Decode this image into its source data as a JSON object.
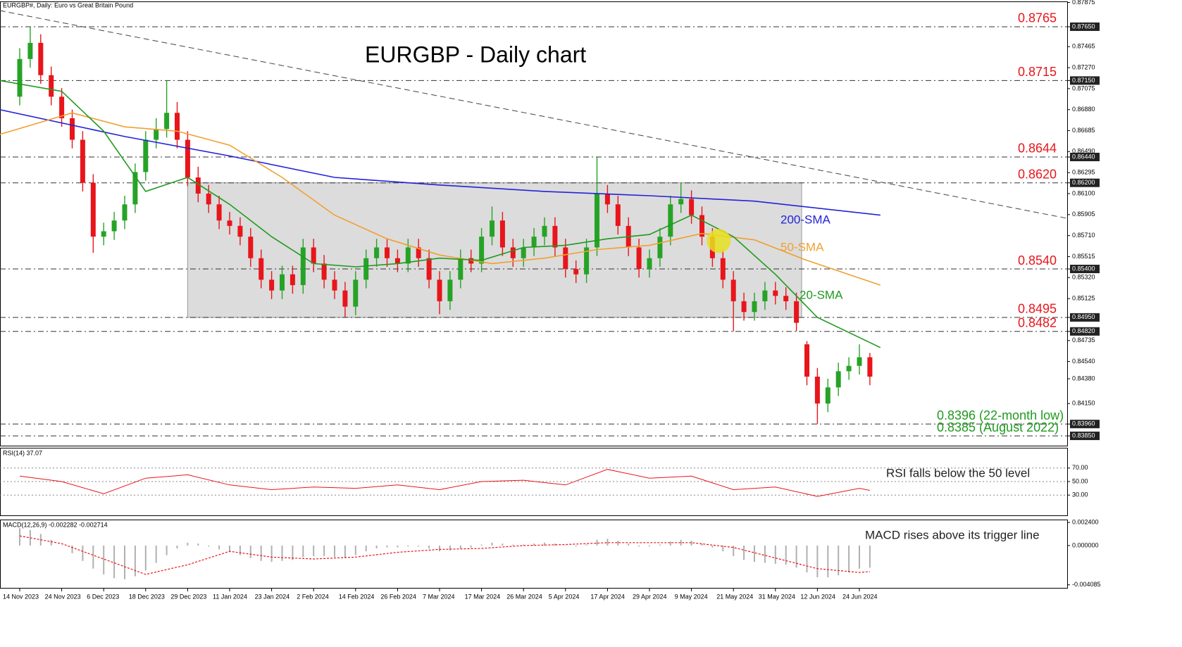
{
  "chart_data": [
    {
      "type": "candlestick",
      "header": "EURGBP#, Daily: Euro vs Great Britain Pound",
      "title": "EURGBP - Daily chart",
      "categories": [
        "14 Nov 2023",
        null,
        null,
        null,
        "24 Nov 2023",
        null,
        null,
        null,
        "6 Dec 2023",
        null,
        null,
        null,
        "18 Dec 2023",
        null,
        null,
        null,
        "29 Dec 2023",
        null,
        null,
        null,
        "11 Jan 2024",
        null,
        null,
        null,
        "23 Jan 2024",
        null,
        null,
        null,
        "2 Feb 2024",
        null,
        null,
        null,
        "14 Feb 2024",
        null,
        null,
        null,
        "26 Feb 2024",
        null,
        null,
        null,
        "7 Mar 2024",
        null,
        null,
        null,
        "17 Mar 2024",
        null,
        null,
        null,
        "26 Mar 2024",
        null,
        null,
        null,
        "5 Apr 2024",
        null,
        null,
        null,
        "17 Apr 2024",
        null,
        null,
        null,
        "29 Apr 2024",
        null,
        null,
        null,
        "9 May 2024",
        null,
        null,
        null,
        "21 May 2024",
        null,
        null,
        null,
        "31 May 2024",
        null,
        null,
        null,
        "12 Jun 2024",
        null,
        null,
        null,
        "24 Jun 2024",
        null
      ],
      "open": [
        0.87,
        0.8735,
        0.875,
        0.872,
        0.87,
        0.868,
        0.866,
        0.862,
        0.857,
        0.8575,
        0.8585,
        0.86,
        0.863,
        0.866,
        0.867,
        0.8685,
        0.866,
        0.8625,
        0.861,
        0.86,
        0.8585,
        0.858,
        0.857,
        0.855,
        0.853,
        0.852,
        0.8535,
        0.8525,
        0.856,
        0.8545,
        0.853,
        0.852,
        0.8505,
        0.853,
        0.855,
        0.856,
        0.855,
        0.8545,
        0.856,
        0.855,
        0.853,
        0.851,
        0.853,
        0.855,
        0.8545,
        0.857,
        0.8585,
        0.856,
        0.855,
        0.856,
        0.857,
        0.858,
        0.856,
        0.854,
        0.8535,
        0.856,
        0.861,
        0.86,
        0.858,
        0.856,
        0.854,
        0.855,
        0.857,
        0.86,
        0.8605,
        0.859,
        0.857,
        0.855,
        0.853,
        0.851,
        0.85,
        0.851,
        0.852,
        0.8515,
        0.851,
        0.847,
        0.844,
        0.8415,
        0.843,
        0.8445,
        0.845,
        0.8458
      ],
      "high": [
        0.8745,
        0.8765,
        0.8758,
        0.8728,
        0.8708,
        0.8688,
        0.8668,
        0.8628,
        0.8583,
        0.8593,
        0.8608,
        0.8638,
        0.8668,
        0.868,
        0.8715,
        0.8695,
        0.8668,
        0.8635,
        0.8618,
        0.8608,
        0.8593,
        0.8588,
        0.8578,
        0.8558,
        0.8538,
        0.8543,
        0.8543,
        0.8568,
        0.8568,
        0.8553,
        0.8538,
        0.8528,
        0.8538,
        0.8558,
        0.8568,
        0.8568,
        0.8558,
        0.8568,
        0.8568,
        0.8558,
        0.8538,
        0.8538,
        0.8558,
        0.8558,
        0.8578,
        0.8598,
        0.8593,
        0.8568,
        0.8568,
        0.8578,
        0.8588,
        0.8588,
        0.8568,
        0.8548,
        0.8568,
        0.8644,
        0.8618,
        0.8608,
        0.8588,
        0.8568,
        0.8558,
        0.8578,
        0.8608,
        0.862,
        0.8613,
        0.8598,
        0.8578,
        0.8558,
        0.8538,
        0.8518,
        0.8518,
        0.8528,
        0.8528,
        0.8523,
        0.8518,
        0.8473,
        0.8448,
        0.8438,
        0.8453,
        0.8458,
        0.847,
        0.8462
      ],
      "low": [
        0.8692,
        0.8727,
        0.8712,
        0.8692,
        0.8672,
        0.8652,
        0.8612,
        0.8555,
        0.8562,
        0.8567,
        0.8577,
        0.8592,
        0.8622,
        0.8652,
        0.8662,
        0.8652,
        0.8617,
        0.8602,
        0.8592,
        0.8577,
        0.8572,
        0.8562,
        0.8542,
        0.8522,
        0.8512,
        0.8512,
        0.8517,
        0.8517,
        0.8537,
        0.8522,
        0.8512,
        0.8495,
        0.8497,
        0.8522,
        0.8542,
        0.8542,
        0.8537,
        0.8537,
        0.8542,
        0.8522,
        0.8498,
        0.8502,
        0.8522,
        0.8537,
        0.8537,
        0.8562,
        0.8552,
        0.8542,
        0.8542,
        0.8552,
        0.8562,
        0.8552,
        0.8532,
        0.8527,
        0.8527,
        0.8552,
        0.8592,
        0.8572,
        0.8552,
        0.8532,
        0.8532,
        0.8542,
        0.8562,
        0.8592,
        0.8582,
        0.8562,
        0.8542,
        0.8522,
        0.8482,
        0.8492,
        0.8492,
        0.8502,
        0.8507,
        0.8502,
        0.8482,
        0.8432,
        0.8396,
        0.8407,
        0.8422,
        0.8437,
        0.8442,
        0.8432
      ],
      "close": [
        0.8735,
        0.875,
        0.872,
        0.87,
        0.868,
        0.866,
        0.862,
        0.857,
        0.8575,
        0.8585,
        0.86,
        0.863,
        0.866,
        0.867,
        0.8685,
        0.866,
        0.8625,
        0.861,
        0.86,
        0.8585,
        0.858,
        0.857,
        0.855,
        0.853,
        0.852,
        0.8535,
        0.8525,
        0.856,
        0.8545,
        0.853,
        0.852,
        0.8505,
        0.853,
        0.855,
        0.856,
        0.855,
        0.8545,
        0.856,
        0.855,
        0.853,
        0.851,
        0.853,
        0.855,
        0.8545,
        0.857,
        0.8585,
        0.856,
        0.855,
        0.856,
        0.857,
        0.858,
        0.856,
        0.854,
        0.8535,
        0.856,
        0.861,
        0.86,
        0.858,
        0.856,
        0.854,
        0.855,
        0.857,
        0.86,
        0.8605,
        0.859,
        0.857,
        0.855,
        0.853,
        0.851,
        0.85,
        0.851,
        0.852,
        0.8515,
        0.851,
        0.849,
        0.844,
        0.8415,
        0.843,
        0.8445,
        0.845,
        0.8458,
        0.844
      ],
      "up_color": "#26a326",
      "down_color": "#e8151b",
      "series": [
        {
          "name": "200-SMA",
          "color": "#2323d8",
          "x": [
            -1.9,
            10,
            20,
            30,
            40,
            50,
            60,
            70,
            82
          ],
          "values": [
            0.8688,
            0.8663,
            0.8645,
            0.8625,
            0.8618,
            0.8612,
            0.8608,
            0.8603,
            0.859
          ]
        },
        {
          "name": "50-SMA",
          "color": "#f0a030",
          "x": [
            -1.9,
            5,
            10,
            15,
            20,
            25,
            30,
            35,
            40,
            45,
            50,
            55,
            60,
            65,
            70,
            75,
            82
          ],
          "values": [
            0.8665,
            0.8685,
            0.8672,
            0.8668,
            0.8655,
            0.8625,
            0.859,
            0.8568,
            0.8553,
            0.8545,
            0.855,
            0.8558,
            0.8562,
            0.8573,
            0.8567,
            0.8548,
            0.8525
          ]
        },
        {
          "name": "20-SMA",
          "color": "#1f9a1f",
          "x": [
            -1.9,
            4,
            8,
            12,
            16,
            20,
            24,
            28,
            32,
            36,
            40,
            44,
            48,
            52,
            56,
            60,
            64,
            68,
            72,
            76,
            82
          ],
          "values": [
            0.8715,
            0.8705,
            0.8668,
            0.8612,
            0.8625,
            0.86,
            0.857,
            0.8545,
            0.8542,
            0.8545,
            0.855,
            0.8548,
            0.856,
            0.8562,
            0.8568,
            0.8572,
            0.859,
            0.857,
            0.8535,
            0.8495,
            0.8467
          ]
        }
      ],
      "levels": [
        {
          "value": 0.8765,
          "label": "0.8765",
          "color": "#e8151b"
        },
        {
          "value": 0.8715,
          "label": "0.8715",
          "color": "#e8151b"
        },
        {
          "value": 0.8644,
          "label": "0.8644",
          "color": "#e8151b"
        },
        {
          "value": 0.862,
          "label": "0.8620",
          "color": "#e8151b"
        },
        {
          "value": 0.854,
          "label": "0.8540",
          "color": "#e8151b"
        },
        {
          "value": 0.8495,
          "label": "0.8495",
          "color": "#e8151b"
        },
        {
          "value": 0.8482,
          "label": "0.8482",
          "color": "#e8151b"
        },
        {
          "value": 0.8396,
          "label": "0.8396 (22-month low)",
          "color": "#1f9a1f"
        },
        {
          "value": 0.8385,
          "label": "0.8385 (August 2022)",
          "color": "#1f9a1f"
        }
      ],
      "range_box": {
        "x": [
          16,
          74.5
        ],
        "y": [
          0.862,
          0.8495
        ]
      },
      "trendline": {
        "x": [
          -1.9,
          99.8
        ],
        "y": [
          0.878,
          0.8587
        ]
      },
      "highlight": {
        "x": 66.6,
        "y": 0.8566
      },
      "ylim": [
        0.83759,
        0.87885
      ],
      "yticks": [
        0.87875,
        {
          "value": 0.8765,
          "label": "0.87650"
        },
        0.87465,
        {
          "value": 0.8727,
          "label": "0.87270"
        },
        {
          "value": 0.8715,
          "label": "0.87150"
        },
        0.87075,
        {
          "value": 0.8688,
          "label": "0.86880"
        },
        0.86685,
        {
          "value": 0.8649,
          "label": "0.86490"
        },
        {
          "value": 0.8644,
          "label": "0.86440"
        },
        0.86295,
        {
          "value": 0.862,
          "label": "0.86200"
        },
        {
          "value": 0.861,
          "label": "0.86100"
        },
        0.85905,
        {
          "value": 0.8571,
          "label": "0.85710"
        },
        0.85515,
        {
          "value": 0.854,
          "label": "0.85400"
        },
        {
          "value": 0.8532,
          "label": "0.85320"
        },
        0.85125,
        {
          "value": 0.8495,
          "label": "0.84950"
        },
        {
          "value": 0.8482,
          "label": "0.84820"
        },
        0.84735,
        {
          "value": 0.8454,
          "label": "0.84540"
        },
        {
          "value": 0.8438,
          "label": "0.84380"
        },
        {
          "value": 0.8415,
          "label": "0.84150"
        },
        {
          "value": 0.8396,
          "label": "0.83960"
        },
        {
          "value": 0.8385,
          "label": "0.83850"
        }
      ]
    },
    {
      "type": "line",
      "title": "RSI(14) 37.07",
      "annotation": "RSI falls below the 50 level",
      "series": [
        {
          "name": "RSI",
          "color": "#e8151b",
          "x": [
            0,
            4,
            8,
            12,
            16,
            20,
            24,
            28,
            32,
            36,
            40,
            44,
            48,
            52,
            56,
            60,
            64,
            68,
            72,
            76,
            80,
            81
          ],
          "values": [
            58,
            50,
            32,
            55,
            60,
            45,
            38,
            42,
            40,
            45,
            38,
            50,
            52,
            45,
            68,
            55,
            58,
            38,
            42,
            28,
            40,
            37
          ]
        }
      ],
      "ylim": [
        0,
        100
      ],
      "yticks": [
        {
          "value": 30,
          "label": "30.00"
        },
        {
          "value": 50,
          "label": "50.00"
        },
        {
          "value": 70,
          "label": "70.00"
        }
      ]
    },
    {
      "type": "macd",
      "title": "MACD(12,26,9) -0.002282 -0.002714",
      "annotation": "MACD rises above its trigger line",
      "histogram": {
        "color": "#b0b0b0",
        "values": [
          0.0018,
          0.0016,
          0.0012,
          0.0006,
          0,
          -0.0008,
          -0.0016,
          -0.0024,
          -0.003,
          -0.0034,
          -0.0035,
          -0.0032,
          -0.0026,
          -0.0018,
          -0.001,
          -0.0003,
          0.0003,
          0.0002,
          -0.0001,
          -0.0004,
          -0.0007,
          -0.001,
          -0.0013,
          -0.0016,
          -0.0017,
          -0.0016,
          -0.0015,
          -0.0012,
          -0.0011,
          -0.0011,
          -0.0012,
          -0.0013,
          -0.001,
          -0.0006,
          -0.0003,
          -0.0002,
          -0.0002,
          -0.0001,
          -0.0001,
          -0.0003,
          -0.0006,
          -0.0005,
          -0.0003,
          -0.0002,
          0.0001,
          0.0003,
          0.0002,
          0.0001,
          0.0001,
          0.0002,
          0.0003,
          0.0002,
          0,
          -0.0001,
          0.0001,
          0.0006,
          0.0007,
          0.0005,
          0.0002,
          -0.0001,
          -0.0001,
          0.0001,
          0.0004,
          0.0006,
          0.0005,
          0.0002,
          -0.0002,
          -0.0006,
          -0.0011,
          -0.0015,
          -0.0017,
          -0.0018,
          -0.0019,
          -0.002,
          -0.0023,
          -0.0028,
          -0.0033,
          -0.0033,
          -0.0031,
          -0.0028,
          -0.0024,
          -0.0023
        ]
      },
      "signal": {
        "color": "#e8151b",
        "x": [
          0,
          4,
          8,
          12,
          16,
          20,
          24,
          28,
          32,
          36,
          40,
          44,
          48,
          52,
          56,
          60,
          64,
          68,
          72,
          76,
          80,
          81
        ],
        "values": [
          0.001,
          0.0002,
          -0.0014,
          -0.003,
          -0.002,
          -0.0006,
          -0.0012,
          -0.0014,
          -0.0012,
          -0.0007,
          -0.0004,
          -0.0003,
          0,
          0.0001,
          0.0003,
          0.0003,
          0.0003,
          -0.0002,
          -0.0013,
          -0.0024,
          -0.0028,
          -0.0027
        ]
      },
      "ylim": [
        -0.0044,
        0.0027
      ],
      "yticks": [
        {
          "value": 0.0024,
          "label": "0.002400"
        },
        {
          "value": 0,
          "label": "0.000000"
        },
        {
          "value": -0.004085,
          "label": "-0.004085"
        }
      ]
    }
  ]
}
